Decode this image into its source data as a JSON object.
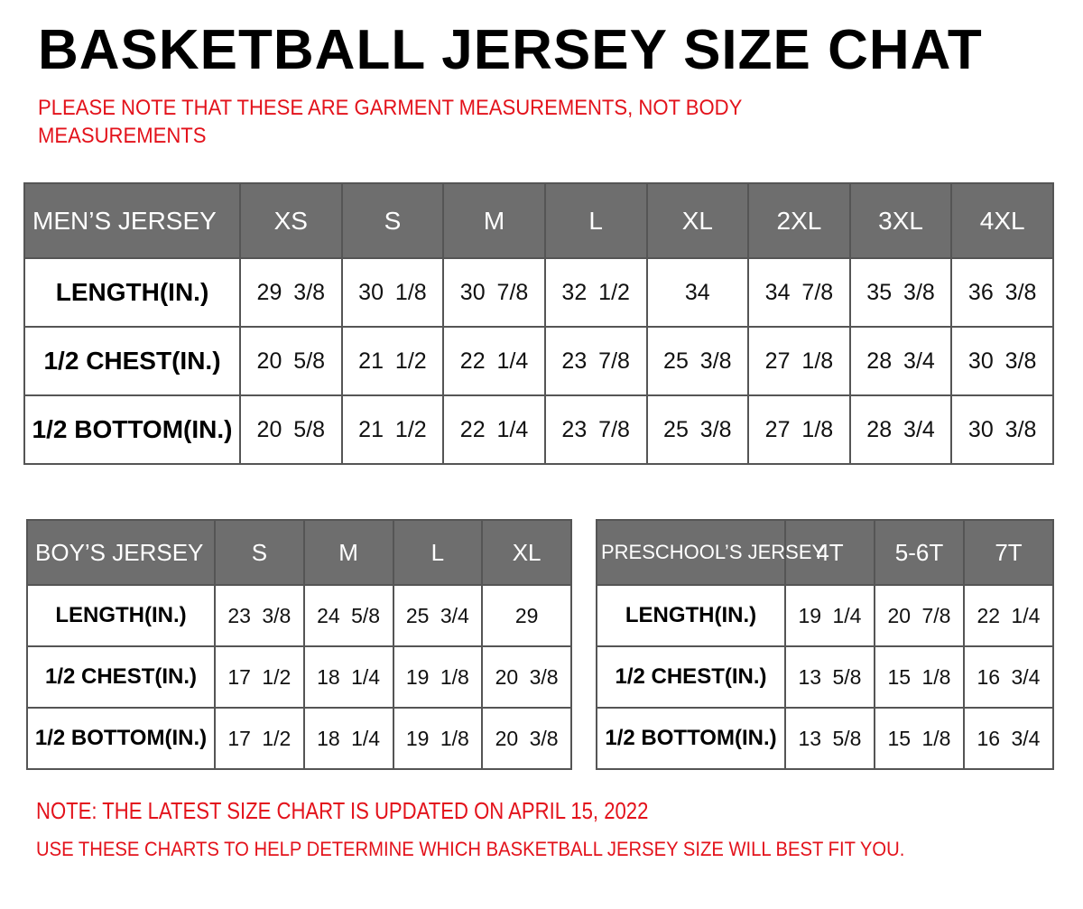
{
  "title": "BASKETBALL JERSEY SIZE CHAT",
  "note_top": "PLEASE NOTE THAT THESE ARE GARMENT MEASUREMENTS, NOT BODY MEASUREMENTS",
  "colors": {
    "header_bg": "#6e6e6e",
    "note": "#e3121b"
  },
  "mens": {
    "header": "MEN’S JERSEY",
    "sizes": [
      "XS",
      "S",
      "M",
      "L",
      "XL",
      "2XL",
      "3XL",
      "4XL"
    ],
    "rows": [
      {
        "label": "LENGTH(IN.)",
        "values": [
          "29 3/8",
          "30 1/8",
          "30 7/8",
          "32 1/2",
          "34",
          "34 7/8",
          "35 3/8",
          "36 3/8"
        ]
      },
      {
        "label": "1/2 CHEST(IN.)",
        "values": [
          "20 5/8",
          "21 1/2",
          "22 1/4",
          "23 7/8",
          "25 3/8",
          "27 1/8",
          "28 3/4",
          "30 3/8"
        ]
      },
      {
        "label": "1/2 BOTTOM(IN.)",
        "values": [
          "20 5/8",
          "21 1/2",
          "22 1/4",
          "23 7/8",
          "25 3/8",
          "27 1/8",
          "28 3/4",
          "30 3/8"
        ]
      }
    ]
  },
  "boys": {
    "header": "BOY’S JERSEY",
    "sizes": [
      "S",
      "M",
      "L",
      "XL"
    ],
    "rows": [
      {
        "label": "LENGTH(IN.)",
        "values": [
          "23 3/8",
          "24 5/8",
          "25 3/4",
          "29"
        ]
      },
      {
        "label": "1/2 CHEST(IN.)",
        "values": [
          "17 1/2",
          "18 1/4",
          "19 1/8",
          "20 3/8"
        ]
      },
      {
        "label": "1/2 BOTTOM(IN.)",
        "values": [
          "17 1/2",
          "18 1/4",
          "19 1/8",
          "20 3/8"
        ]
      }
    ]
  },
  "preschool": {
    "header": "PRESCHOOL’S JERSEY",
    "sizes": [
      "4T",
      "5-6T",
      "7T"
    ],
    "rows": [
      {
        "label": "LENGTH(IN.)",
        "values": [
          "19 1/4",
          "20 7/8",
          "22 1/4"
        ]
      },
      {
        "label": "1/2 CHEST(IN.)",
        "values": [
          "13 5/8",
          "15 1/8",
          "16 3/4"
        ]
      },
      {
        "label": "1/2 BOTTOM(IN.)",
        "values": [
          "13 5/8",
          "15 1/8",
          "16 3/4"
        ]
      }
    ]
  },
  "note_updated": "NOTE: THE LATEST SIZE CHART IS UPDATED ON APRIL 15, 2022",
  "note_usage": "USE THESE CHARTS TO HELP DETERMINE WHICH  BASKETBALL JERSEY  SIZE WILL BEST FIT YOU."
}
